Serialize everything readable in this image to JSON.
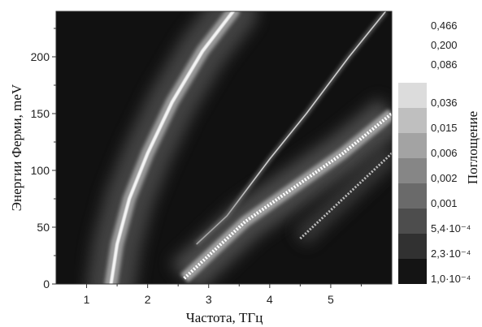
{
  "chart_data": {
    "type": "heatmap",
    "xlabel": "Частота, ТГц",
    "ylabel": "Энергии Ферми, meV",
    "colorbar_label": "Поглощение",
    "xlim": [
      0.5,
      6.0
    ],
    "ylim": [
      0,
      240
    ],
    "x_ticks": [
      1,
      2,
      3,
      4,
      5
    ],
    "x_tick_labels": [
      "1",
      "2",
      "3",
      "4",
      "5"
    ],
    "y_ticks": [
      0,
      50,
      100,
      150,
      200
    ],
    "y_tick_labels": [
      "0",
      "50",
      "100",
      "150",
      "200"
    ],
    "colorbar_levels": [
      "1,0·10⁻⁴",
      "2,3·10⁻⁴",
      "5,4·10⁻⁴",
      "0,001",
      "0,002",
      "0,006",
      "0,015",
      "0,036",
      "0,086",
      "0,200",
      "0,466"
    ],
    "colorbar_values": [
      0.0001,
      0.00023,
      0.00054,
      0.001,
      0.002,
      0.006,
      0.015,
      0.036,
      0.086,
      0.2,
      0.466
    ],
    "colorscale": "grayscale",
    "colorscale_log": true,
    "grid": false,
    "resonance_curves": [
      {
        "name": "",
        "style": "broad-bright",
        "points": [
          [
            1.4,
            0
          ],
          [
            1.5,
            35
          ],
          [
            1.7,
            75
          ],
          [
            2.0,
            115
          ],
          [
            2.4,
            160
          ],
          [
            2.9,
            205
          ],
          [
            3.4,
            240
          ]
        ]
      },
      {
        "name": "",
        "style": "thin-line",
        "points": [
          [
            2.8,
            35
          ],
          [
            3.3,
            60
          ],
          [
            4.0,
            110
          ],
          [
            4.6,
            150
          ],
          [
            5.3,
            200
          ],
          [
            5.9,
            240
          ]
        ]
      },
      {
        "name": "",
        "style": "dotted-bright",
        "points": [
          [
            2.6,
            5
          ],
          [
            3.0,
            25
          ],
          [
            3.6,
            55
          ],
          [
            4.4,
            85
          ],
          [
            5.2,
            115
          ],
          [
            6.0,
            150
          ]
        ]
      },
      {
        "name": "",
        "style": "dotted-faint",
        "points": [
          [
            4.5,
            40
          ],
          [
            5.0,
            65
          ],
          [
            5.5,
            90
          ],
          [
            6.0,
            115
          ]
        ]
      }
    ]
  }
}
